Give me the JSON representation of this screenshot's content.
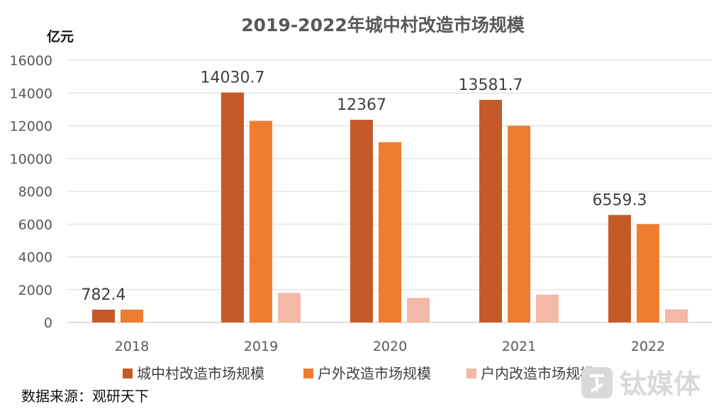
{
  "chart_data": {
    "type": "bar",
    "title": "2019-2022年城中村改造市场规模",
    "ylabel": "亿元",
    "xlabel": "",
    "ylim": [
      0,
      16000
    ],
    "yticks": [
      0,
      2000,
      4000,
      6000,
      8000,
      10000,
      12000,
      14000,
      16000
    ],
    "categories": [
      "2018",
      "2019",
      "2020",
      "2021",
      "2022"
    ],
    "series": [
      {
        "name": "城中村改造市场规模",
        "values": [
          782.4,
          14030.7,
          12367,
          13581.7,
          6559.3
        ],
        "color": "#c55a28"
      },
      {
        "name": "户外改造市场规模",
        "values": [
          782.4,
          12300,
          11000,
          12000,
          6000
        ],
        "color": "#ed7d31"
      },
      {
        "name": "户内改造市场规模",
        "values": [
          0,
          1800,
          1500,
          1700,
          800
        ],
        "color": "#f4b8a6"
      }
    ],
    "data_labels": [
      "782.4",
      "14030.7",
      "12367",
      "13581.7",
      "6559.3"
    ],
    "grid": true,
    "legend_position": "bottom"
  },
  "source": "数据来源：观研天下",
  "watermark": {
    "text": "钛媒体",
    "icon": "tmtpost-logo-icon",
    "color": "#d9d9d9"
  }
}
